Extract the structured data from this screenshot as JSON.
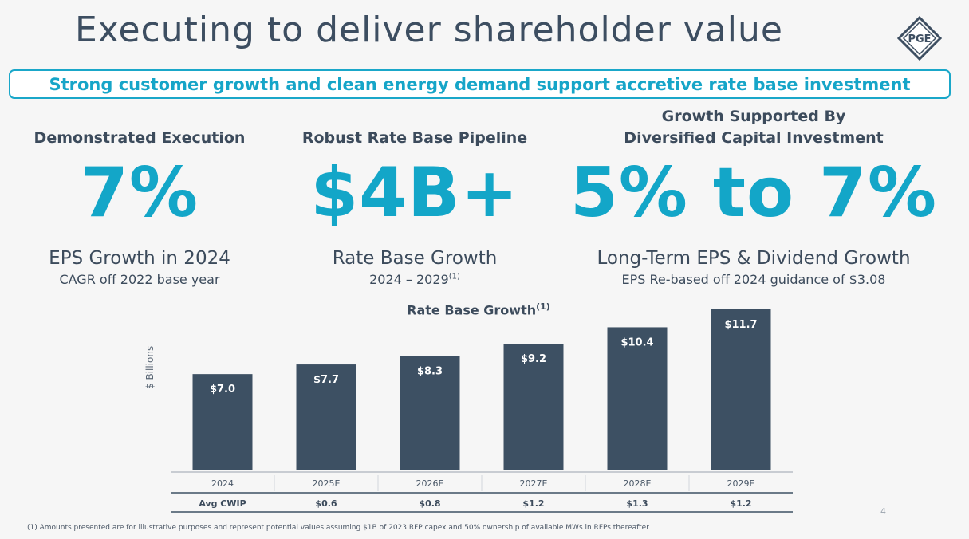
{
  "title": "Executing to deliver shareholder value",
  "logo_text": "PGE",
  "banner": "Strong customer growth and clean energy demand support accretive rate base investment",
  "columns": [
    {
      "heading": "Demonstrated Execution",
      "big": "7%",
      "sub": "EPS Growth in 2024",
      "note": "CAGR off 2022 base year",
      "note_sup": ""
    },
    {
      "heading": "Robust Rate Base Pipeline",
      "big": "$4B+",
      "sub": "Rate Base Growth",
      "note": "2024 – 2029",
      "note_sup": "(1)"
    },
    {
      "heading_line1": "Growth Supported By",
      "heading_line2": "Diversified Capital Investment",
      "big": "5% to 7%",
      "sub": "Long-Term EPS & Dividend Growth",
      "note": "EPS Re-based off 2024 guidance of $3.08",
      "note_sup": ""
    }
  ],
  "chart_data": {
    "type": "bar",
    "title": "Rate Base Growth",
    "title_sup": "(1)",
    "ylabel": "$ Billions",
    "xlabel": "",
    "categories": [
      "2024",
      "2025E",
      "2026E",
      "2027E",
      "2028E",
      "2029E"
    ],
    "values": [
      7.0,
      7.7,
      8.3,
      9.2,
      10.4,
      11.7
    ],
    "value_labels": [
      "$7.0",
      "$7.7",
      "$8.3",
      "$9.2",
      "$10.4",
      "$11.7"
    ],
    "ylim": [
      0,
      11.7
    ],
    "grid": false,
    "legend": "none",
    "table_row": {
      "label": "Avg CWIP",
      "values": [
        "$0.6",
        "$0.8",
        "$1.2",
        "$1.3",
        "$1.2"
      ]
    }
  },
  "footnote": "(1) Amounts presented are for illustrative purposes and represent potential values assuming $1B of 2023 RFP capex and 50% ownership of available MWs in RFPs thereafter",
  "page_number": "4",
  "colors": {
    "accent": "#13a6c8",
    "bar": "#3d5063",
    "text": "#3c4b5c"
  }
}
